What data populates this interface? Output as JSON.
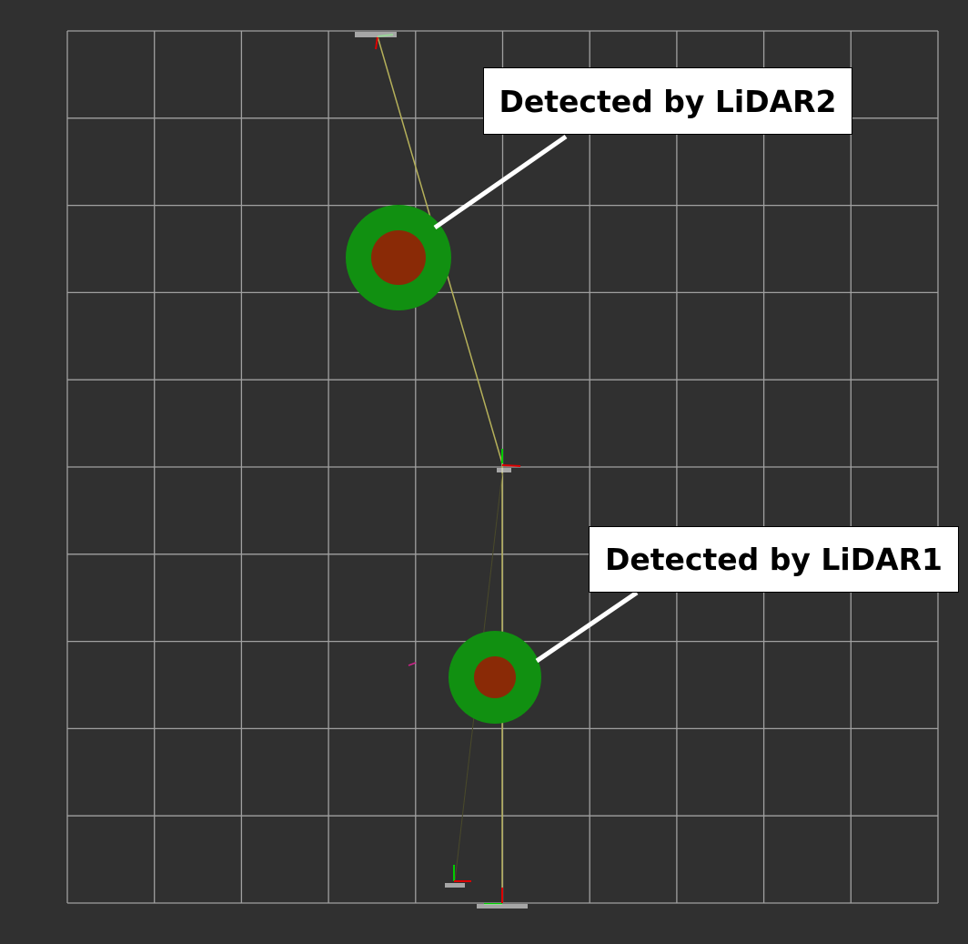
{
  "colors": {
    "background": "#303030",
    "grid_line": "#a0a0a0",
    "trajectory_line": "#b5b05a",
    "faint_line": "#4a4a2a",
    "detection_outer": "#119011",
    "detection_inner": "#8a2a06",
    "callout_box": "#ffffff",
    "callout_leader": "#ffffff",
    "axis_x": "#dd0000",
    "axis_y": "#00cc00",
    "stray_marker": "#cc2288"
  },
  "grid": {
    "cells_x": 10,
    "cells_y": 10,
    "visible": true
  },
  "callouts": {
    "lidar2": "Detected by LiDAR2",
    "lidar1": "Detected by LiDAR1"
  },
  "detections": [
    {
      "id": "lidar2",
      "label_ref": "callouts.lidar2"
    },
    {
      "id": "lidar1",
      "label_ref": "callouts.lidar1"
    }
  ],
  "frames": [
    {
      "id": "lidar2-frame",
      "icon": "coordinate-axes-icon"
    },
    {
      "id": "map-frame",
      "icon": "coordinate-axes-icon"
    },
    {
      "id": "lidar1-frame",
      "icon": "coordinate-axes-icon"
    },
    {
      "id": "base-frame",
      "icon": "coordinate-axes-icon"
    }
  ]
}
